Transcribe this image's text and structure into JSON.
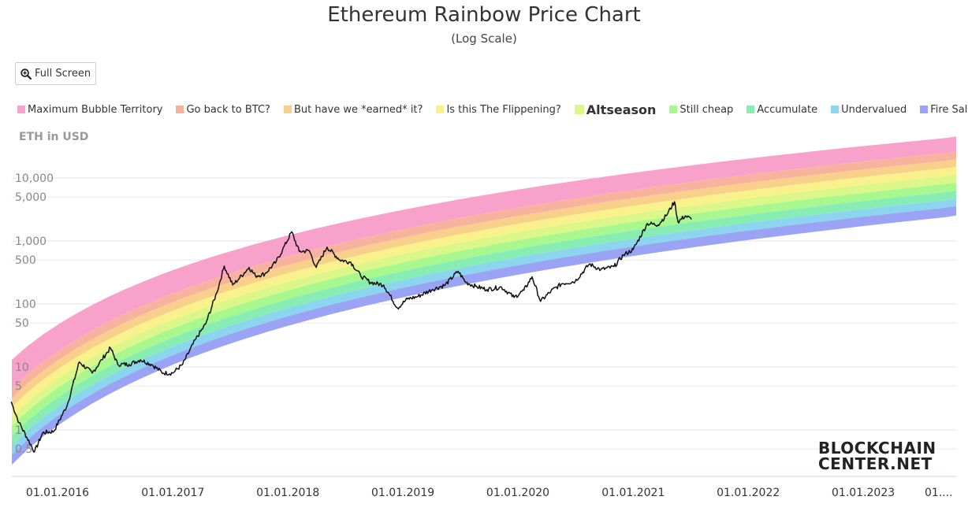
{
  "title": "Ethereum Rainbow Price Chart",
  "subtitle": "(Log Scale)",
  "full_screen_label": "Full Screen",
  "logo": {
    "line1": "BLOCKCHAIN",
    "line2": "CENTER.NET"
  },
  "chart_data": {
    "type": "line",
    "title": "Ethereum Rainbow Price Chart",
    "subtitle": "(Log Scale)",
    "ylabel": "ETH in USD",
    "yscale": "log",
    "ylim": [
      0.3,
      60000
    ],
    "xlim": [
      "2015-08-07",
      "2023-12-31"
    ],
    "grid": true,
    "legend_position": "top",
    "y_ticks": [
      0.5,
      1,
      5,
      10,
      50,
      100,
      500,
      1000,
      5000,
      10000
    ],
    "y_tick_labels": [
      "0.5",
      "1",
      "5",
      "10",
      "50",
      "100",
      "500",
      "1,000",
      "5,000",
      "10,000"
    ],
    "x_ticks": [
      "2016-01-01",
      "2017-01-01",
      "2018-01-01",
      "2019-01-01",
      "2020-01-01",
      "2021-01-01",
      "2022-01-01",
      "2023-01-01",
      "2024-01-01"
    ],
    "x_tick_labels": [
      "01.01.2016",
      "01.01.2017",
      "01.01.2018",
      "01.01.2019",
      "01.01.2020",
      "01.01.2021",
      "01.01.2022",
      "01.01.2023",
      "01...."
    ],
    "bands": [
      {
        "name": "Maximum Bubble Territory",
        "color": "#f8a2cb",
        "at_start": [
          4.5,
          13
        ],
        "at_end": [
          28000,
          48000
        ]
      },
      {
        "name": "Go back to BTC?",
        "color": "#f8b39f",
        "at_start": [
          3.2,
          4.5
        ],
        "at_end": [
          21000,
          28000
        ]
      },
      {
        "name": "But have we *earned* it?",
        "color": "#f9cf8c",
        "at_start": [
          2.3,
          3.2
        ],
        "at_end": [
          16000,
          21000
        ]
      },
      {
        "name": "Is this The Flippening?",
        "color": "#f9f18c",
        "at_start": [
          1.6,
          2.3
        ],
        "at_end": [
          12000,
          16000
        ]
      },
      {
        "name": "Altseason",
        "color": "#dcf789",
        "at_start": [
          1.15,
          1.6
        ],
        "at_end": [
          9000,
          12000
        ]
      },
      {
        "name": "Still cheap",
        "color": "#a9f78f",
        "at_start": [
          0.8,
          1.15
        ],
        "at_end": [
          6700,
          9000
        ]
      },
      {
        "name": "Accumulate",
        "color": "#88edb3",
        "at_start": [
          0.56,
          0.8
        ],
        "at_end": [
          5000,
          6700
        ]
      },
      {
        "name": "Undervalued",
        "color": "#8cd5ef",
        "at_start": [
          0.4,
          0.56
        ],
        "at_end": [
          3800,
          5000
        ]
      },
      {
        "name": "Fire Sale",
        "color": "#9aa3f4",
        "at_start": [
          0.28,
          0.4
        ],
        "at_end": [
          2700,
          3800
        ]
      }
    ],
    "series": [
      {
        "name": "ETH",
        "color": "#111111",
        "points": [
          [
            "2015-08-07",
            2.8
          ],
          [
            "2015-09-01",
            1.3
          ],
          [
            "2015-10-20",
            0.45
          ],
          [
            "2015-11-15",
            0.9
          ],
          [
            "2015-12-20",
            0.95
          ],
          [
            "2016-02-01",
            2.5
          ],
          [
            "2016-03-10",
            12
          ],
          [
            "2016-04-20",
            8
          ],
          [
            "2016-05-20",
            13
          ],
          [
            "2016-06-17",
            20
          ],
          [
            "2016-07-10",
            11
          ],
          [
            "2016-08-15",
            11
          ],
          [
            "2016-09-20",
            13
          ],
          [
            "2016-10-25",
            11
          ],
          [
            "2016-12-01",
            8
          ],
          [
            "2016-12-31",
            8
          ],
          [
            "2017-02-01",
            11
          ],
          [
            "2017-03-15",
            28
          ],
          [
            "2017-04-15",
            48
          ],
          [
            "2017-05-20",
            150
          ],
          [
            "2017-06-13",
            400
          ],
          [
            "2017-07-10",
            200
          ],
          [
            "2017-08-01",
            260
          ],
          [
            "2017-08-31",
            380
          ],
          [
            "2017-09-20",
            280
          ],
          [
            "2017-10-20",
            300
          ],
          [
            "2017-11-25",
            470
          ],
          [
            "2017-12-15",
            720
          ],
          [
            "2018-01-13",
            1400
          ],
          [
            "2018-02-06",
            680
          ],
          [
            "2018-03-10",
            700
          ],
          [
            "2018-04-01",
            380
          ],
          [
            "2018-05-05",
            800
          ],
          [
            "2018-06-15",
            500
          ],
          [
            "2018-07-20",
            460
          ],
          [
            "2018-08-20",
            280
          ],
          [
            "2018-09-20",
            220
          ],
          [
            "2018-11-01",
            200
          ],
          [
            "2018-12-15",
            86
          ],
          [
            "2019-01-15",
            120
          ],
          [
            "2019-02-15",
            130
          ],
          [
            "2019-04-05",
            170
          ],
          [
            "2019-05-15",
            200
          ],
          [
            "2019-06-25",
            330
          ],
          [
            "2019-07-20",
            220
          ],
          [
            "2019-08-20",
            190
          ],
          [
            "2019-09-25",
            170
          ],
          [
            "2019-11-10",
            185
          ],
          [
            "2019-12-20",
            127
          ],
          [
            "2020-01-20",
            165
          ],
          [
            "2020-02-15",
            270
          ],
          [
            "2020-03-13",
            110
          ],
          [
            "2020-04-15",
            160
          ],
          [
            "2020-05-20",
            210
          ],
          [
            "2020-07-01",
            230
          ],
          [
            "2020-08-15",
            430
          ],
          [
            "2020-09-20",
            350
          ],
          [
            "2020-11-01",
            390
          ],
          [
            "2020-12-01",
            600
          ],
          [
            "2021-01-01",
            730
          ],
          [
            "2021-02-15",
            1900
          ],
          [
            "2021-03-20",
            1800
          ],
          [
            "2021-04-15",
            2500
          ],
          [
            "2021-05-12",
            4200
          ],
          [
            "2021-05-23",
            2000
          ],
          [
            "2021-06-15",
            2500
          ],
          [
            "2021-07-05",
            2200
          ]
        ]
      }
    ]
  }
}
